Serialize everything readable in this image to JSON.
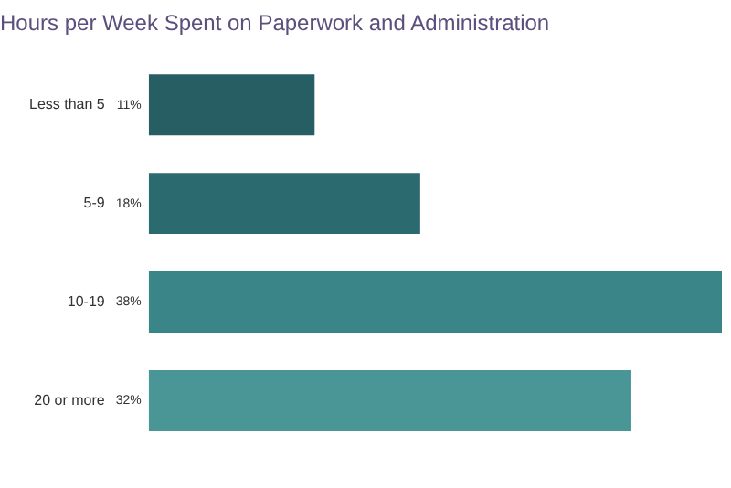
{
  "chart_data": {
    "type": "bar",
    "orientation": "horizontal",
    "title": "Hours per Week Spent on Paperwork and Administration",
    "categories": [
      "Less than 5",
      "5-9",
      "10-19",
      "20 or more"
    ],
    "values": [
      11,
      18,
      38,
      32
    ],
    "value_labels": [
      "11%",
      "18%",
      "38%",
      "32%"
    ],
    "colors": [
      "#265e63",
      "#2b6a6e",
      "#3a8588",
      "#4a9696"
    ],
    "legend": false,
    "tick_labels": "y"
  }
}
